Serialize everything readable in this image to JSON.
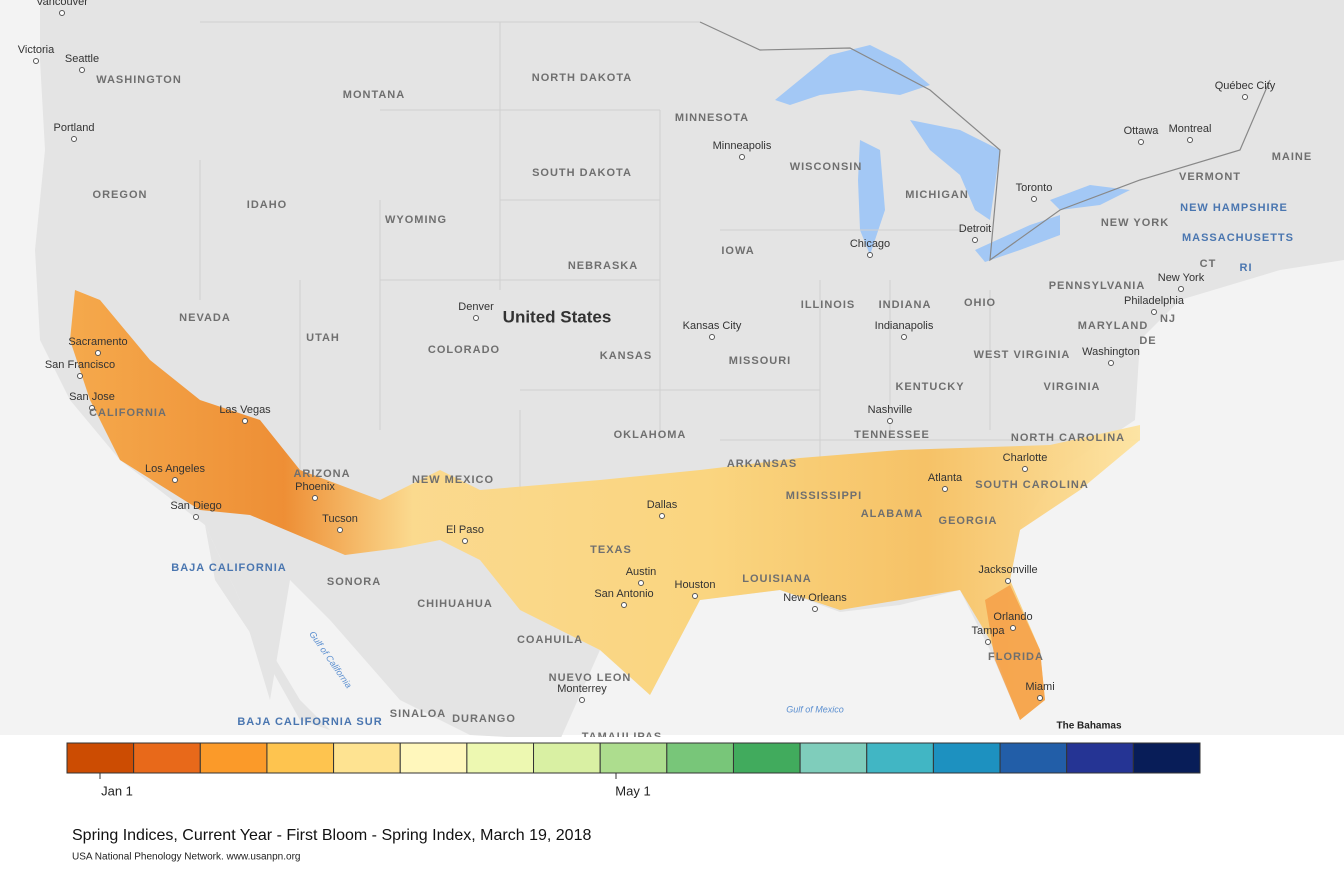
{
  "map": {
    "labels": [
      "Vancouver",
      "Victoria",
      "Seattle",
      "WASHINGTON",
      "Portland",
      "OREGON",
      "IDAHO",
      "MONTANA",
      "WYOMING",
      "NEVADA",
      "UTAH",
      "COLORADO",
      "Sacramento",
      "San Francisco",
      "San Jose",
      "CALIFORNIA",
      "Las Vegas",
      "Los Angeles",
      "San Diego",
      "ARIZONA",
      "Phoenix",
      "Tucson",
      "NEW MEXICO",
      "El Paso",
      "Denver",
      "United States",
      "NORTH DAKOTA",
      "SOUTH DAKOTA",
      "NEBRASKA",
      "KANSAS",
      "OKLAHOMA",
      "TEXAS",
      "Dallas",
      "Austin",
      "Houston",
      "San Antonio",
      "MINNESOTA",
      "Minneapolis",
      "IOWA",
      "Kansas City",
      "MISSOURI",
      "ARKANSAS",
      "LOUISIANA",
      "New Orleans",
      "MISSISSIPPI",
      "WISCONSIN",
      "Chicago",
      "ILLINOIS",
      "INDIANA",
      "Indianapolis",
      "MICHIGAN",
      "Detroit",
      "OHIO",
      "KENTUCKY",
      "Nashville",
      "TENNESSEE",
      "ALABAMA",
      "Atlanta",
      "GEORGIA",
      "NORTH CAROLINA",
      "Charlotte",
      "SOUTH CAROLINA",
      "Jacksonville",
      "Orlando",
      "Tampa",
      "FLORIDA",
      "Miami",
      "Toronto",
      "Ottawa",
      "Montreal",
      "Québec City",
      "MAINE",
      "VERMONT",
      "NEW HAMPSHIRE",
      "NEW YORK",
      "MASSACHUSETTS",
      "CT",
      "RI",
      "New York",
      "PENNSYLVANIA",
      "Philadelphia",
      "NJ",
      "MARYLAND",
      "DE",
      "Washington",
      "WEST VIRGINIA",
      "VIRGINIA",
      "BAJA CALIFORNIA",
      "SONORA",
      "CHIHUAHUA",
      "COAHUILA",
      "NUEVO LEON",
      "Monterrey",
      "SINALOA",
      "DURANGO",
      "TAMAULIPAS",
      "BAJA CALIFORNIA SUR",
      "Gulf of California",
      "Gulf of Mexico",
      "The Bahamas"
    ]
  },
  "legend": {
    "colors": [
      "#cc4c02",
      "#e8691a",
      "#fb9a29",
      "#fec44f",
      "#fee391",
      "#fff7bc",
      "#edf8b1",
      "#d9f0a3",
      "#addd8e",
      "#78c679",
      "#41ab5d",
      "#7fcdbb",
      "#41b6c4",
      "#1d91c0",
      "#225ea8",
      "#253494",
      "#081d58"
    ],
    "ticks": [
      "Jan 1",
      "May 1"
    ]
  },
  "caption": {
    "title": "Spring Indices, Current Year - First Bloom - Spring Index, March 19, 2018",
    "source": "USA National Phenology Network. www.usanpn.org"
  }
}
